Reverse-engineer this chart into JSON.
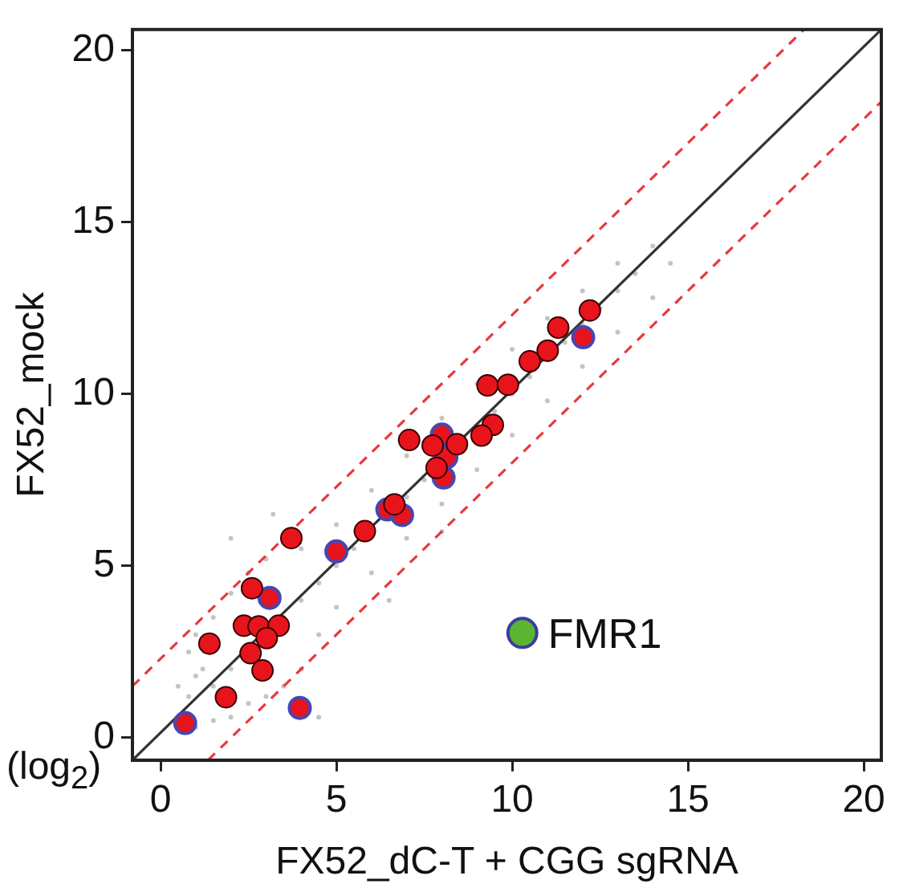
{
  "chart_data": {
    "type": "scatter",
    "xlabel": "FX52_dC-T + CGG sgRNA",
    "ylabel": "FX52_mock",
    "xlim": [
      -0.8,
      20.5
    ],
    "ylim": [
      -0.65,
      20.6
    ],
    "xticks": [
      0,
      5,
      10,
      15,
      20
    ],
    "yticks": [
      0,
      5,
      10,
      15,
      20
    ],
    "annotations": [
      "(log$_{2}$)",
      {
        "text": "FMR1",
        "x": 10.29,
        "y": 3.05
      }
    ],
    "marker": "circle",
    "series": [
      {
        "color": "#c4c4c4",
        "x": [
          0.5,
          0.8,
          1,
          1.5,
          2,
          2.5,
          3,
          3.5,
          4,
          1,
          1.5,
          2,
          2.5,
          3,
          4,
          5,
          6,
          7,
          8,
          9,
          10,
          11,
          12,
          13,
          4.5,
          5,
          6,
          7,
          8,
          9,
          10,
          11,
          12,
          13,
          14,
          14,
          14.5,
          2,
          4,
          5,
          7,
          10,
          11,
          12,
          13,
          1.5,
          3.5,
          4.5,
          5.5,
          7.5,
          9.5,
          10.5,
          11.5,
          12.5,
          13.5,
          3.2,
          4.5,
          6.5,
          8,
          2,
          1,
          0.8,
          1.2
        ],
        "values": [
          1.5,
          2.5,
          0.3,
          0.5,
          0.6,
          1,
          1.2,
          1.5,
          2,
          3,
          3.5,
          4.2,
          4.8,
          5.2,
          5.5,
          6.2,
          7.2,
          8.2,
          9.3,
          10.3,
          11.3,
          12.2,
          13,
          13.8,
          3,
          3.8,
          4.8,
          5.8,
          6.8,
          7.8,
          8.8,
          9.8,
          10.8,
          11.8,
          12.8,
          14.3,
          13.8,
          2,
          4,
          5,
          7,
          10,
          11,
          12,
          13,
          1.5,
          3.5,
          4.5,
          5.5,
          7.5,
          9.5,
          10.5,
          11.5,
          12.5,
          13.5,
          6.5,
          0.6,
          4,
          6,
          5.8,
          1.8,
          1.2,
          2
        ]
      },
      {
        "type": "line",
        "color": "#333333",
        "marker": "none",
        "line_style": "solid",
        "x": [
          -0.8,
          20.5
        ],
        "values": [
          -0.65,
          20.6
        ]
      },
      {
        "type": "line",
        "color": "#e8393c",
        "marker": "none",
        "line_style": "dashed",
        "x": [
          -0.8,
          18.3
        ],
        "values": [
          1.5,
          20.6
        ]
      },
      {
        "type": "line",
        "color": "#e8393c",
        "marker": "none",
        "line_style": "dashed",
        "x": [
          1.35,
          20.5
        ],
        "values": [
          -0.65,
          18.5
        ]
      },
      {
        "color": "#e8141c",
        "x": [
          7.07,
          7.74,
          7.85,
          6.65,
          5.81,
          3.72,
          2.6,
          2.37,
          2.79,
          3.36,
          3.02,
          1.39,
          2.56,
          2.9,
          1.86,
          12.21,
          11.31,
          11.01,
          10.5,
          9.3,
          9.88,
          9.45,
          9.13,
          8.43
        ],
        "values": [
          8.66,
          8.5,
          7.85,
          6.79,
          6.01,
          5.81,
          4.35,
          3.26,
          3.24,
          3.26,
          2.9,
          2.74,
          2.46,
          1.96,
          1.18,
          12.43,
          11.93,
          11.26,
          10.95,
          10.25,
          10.27,
          9.1,
          8.79,
          8.54
        ]
      },
      {
        "color": "#e8141c",
        "x": [
          8.0,
          8.13,
          8.05,
          6.45,
          6.87,
          5.0,
          3.1,
          3.96,
          0.7,
          12.02
        ],
        "values": [
          8.82,
          8.16,
          7.57,
          6.64,
          6.48,
          5.42,
          4.07,
          0.87,
          0.43,
          11.65
        ]
      },
      {
        "color": "#5cb531",
        "x": [
          10.29
        ],
        "values": [
          3.05
        ]
      }
    ]
  }
}
